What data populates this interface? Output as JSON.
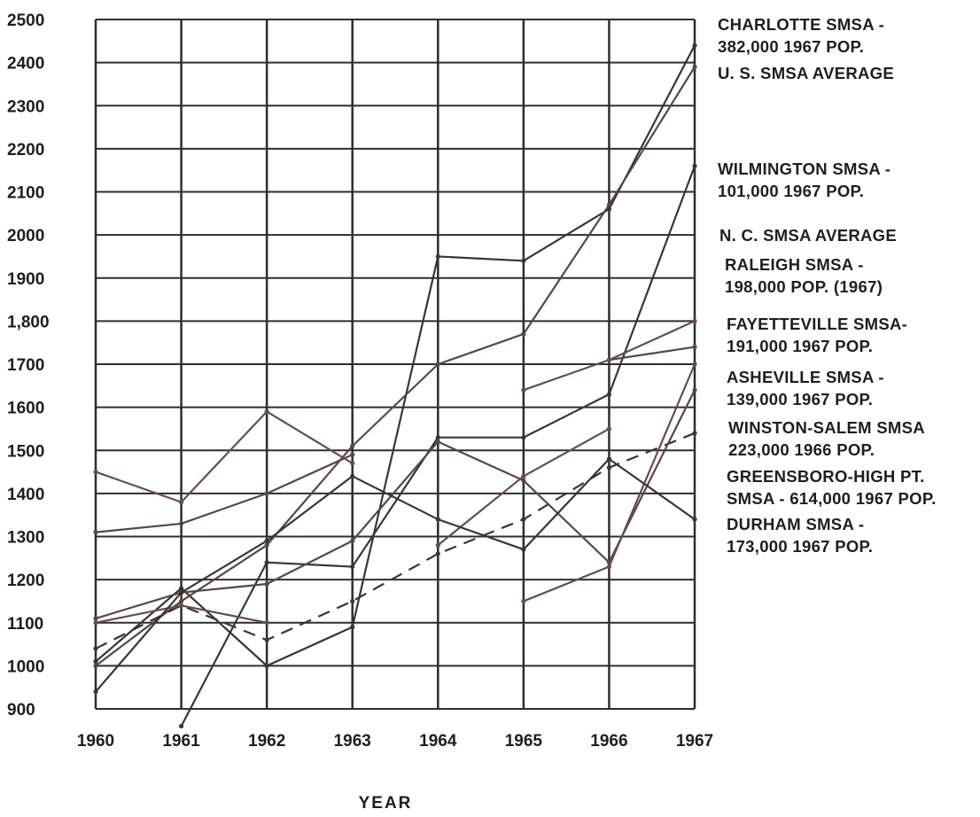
{
  "chart_data": {
    "type": "line",
    "title": "",
    "xlabel": "YEAR",
    "ylabel": "",
    "x": [
      "1960",
      "1961",
      "1962",
      "1963",
      "1964",
      "1965",
      "1966",
      "1967"
    ],
    "yticks": [
      "2500",
      "2400",
      "2300",
      "2200",
      "2100",
      "2000",
      "1900",
      "1,800",
      "1700",
      "1600",
      "1500",
      "1400",
      "1300",
      "1200",
      "1100",
      "1000",
      "900"
    ],
    "ylim": [
      900,
      2500
    ],
    "grid": true,
    "series": [
      {
        "name": "CHARLOTTE SMSA - 382,000 1967 POP.",
        "values": [
          1010,
          1180,
          1000,
          1090,
          1950,
          1940,
          2060,
          2440
        ],
        "color": "#3a3535"
      },
      {
        "name": "U. S. SMSA AVERAGE",
        "values": [
          1000,
          1150,
          1280,
          1510,
          1700,
          1770,
          2070,
          2390
        ],
        "color": "#5a4548"
      },
      {
        "name": "WILMINGTON SMSA - 101,000 1967 POP.",
        "values": [
          null,
          860,
          1240,
          1230,
          1530,
          1530,
          1630,
          2160
        ],
        "color": "#3a3535"
      },
      {
        "name": "N. C. SMSA AVERAGE",
        "values": [
          1040,
          1140,
          1060,
          1150,
          1260,
          1340,
          1460,
          1540
        ],
        "color": "#3a3535",
        "dash": true
      },
      {
        "name": "RALEIGH SMSA - 198,000 POP. (1967)",
        "values": [
          1310,
          1330,
          1400,
          1490,
          null,
          null,
          1710,
          1740
        ],
        "color": "#5a4548"
      },
      {
        "name": "FAYETTEVILLE SMSA- 191,000 1967 POP.",
        "values": [
          1450,
          1380,
          1590,
          1470,
          null,
          1640,
          1710,
          1800
        ],
        "color": "#6a4a50"
      },
      {
        "name": "ASHEVILLE SMSA - 139,000 1967 POP.",
        "values": [
          1110,
          1170,
          1190,
          1290,
          1520,
          1430,
          1240,
          1640
        ],
        "color": "#5a4548"
      },
      {
        "name": "WINSTON-SALEM SMSA 223,000 1966 POP.",
        "values": [
          1100,
          1140,
          1100,
          null,
          1280,
          1440,
          1550,
          null
        ],
        "color": "#6a4a50"
      },
      {
        "name": "GREENSBORO-HIGH PT. SMSA-614,000 1967 POP.",
        "values": [
          null,
          null,
          null,
          null,
          null,
          1150,
          1230,
          1700
        ],
        "color": "#6a4a50"
      },
      {
        "name": "DURHAM SMSA - 173,000 1967 POP.",
        "values": [
          940,
          1170,
          1290,
          1440,
          1340,
          1270,
          1480,
          1340
        ],
        "color": "#3a3535"
      }
    ],
    "legend_labels": [
      {
        "line1": "CHARLOTTE  SMSA -",
        "line2": "382,000  1967  POP."
      },
      {
        "line1": "U. S.  SMSA  AVERAGE",
        "line2": ""
      },
      {
        "line1": "WILMINGTON  SMSA -",
        "line2": "101,000  1967  POP."
      },
      {
        "line1": "N. C.  SMSA  AVERAGE",
        "line2": ""
      },
      {
        "line1": "RALEIGH  SMSA -",
        "line2": "198,000  POP.  (1967)"
      },
      {
        "line1": "FAYETTEVILLE  SMSA-",
        "line2": "191,000  1967  POP."
      },
      {
        "line1": "ASHEVILLE  SMSA -",
        "line2": "139,000  1967  POP."
      },
      {
        "line1": "WINSTON-SALEM  SMSA",
        "line2": "223,000  1966  POP."
      },
      {
        "line1": "GREENSBORO-HIGH  PT.",
        "line2": "SMSA - 614,000  1967 POP."
      },
      {
        "line1": "DURHAM  SMSA -",
        "line2": "173,000  1967  POP."
      }
    ],
    "legend_placement": "right",
    "colors": {
      "grid": "#2e2e2e",
      "ink": "#1e1e1e"
    }
  }
}
